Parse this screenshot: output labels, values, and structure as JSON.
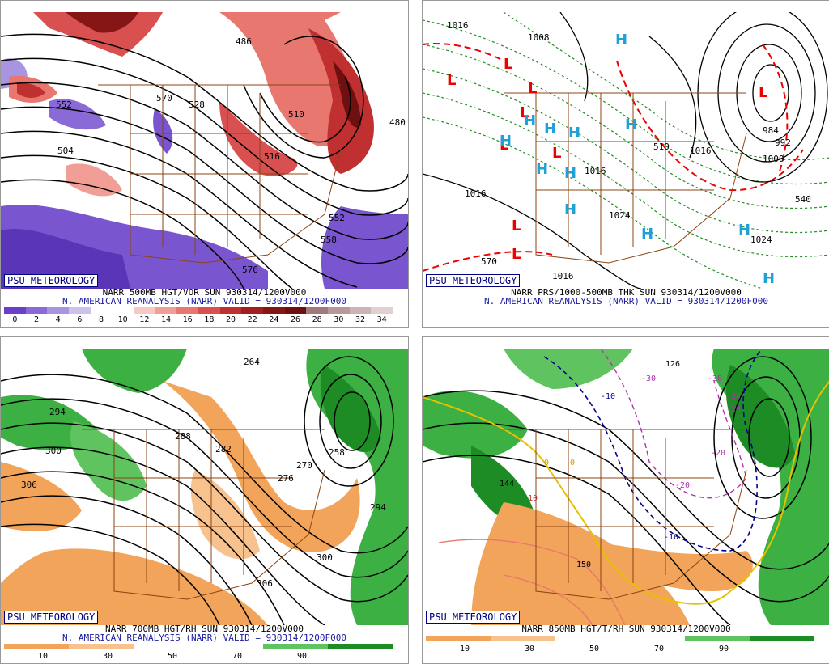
{
  "panels": [
    {
      "label": "PSU METEOROLOGY",
      "title_line1": "NARR 500MB HGT/VOR SUN 930314/1200V000",
      "title_line2": "N. AMERICAN REANALYSIS (NARR) VALID = 930314/1200F000",
      "colorbar_labels": [
        "0",
        "2",
        "4",
        "6",
        "8",
        "10",
        "12",
        "14",
        "16",
        "18",
        "20",
        "22",
        "24",
        "26",
        "28",
        "30",
        "32",
        "34"
      ],
      "colorbar_colors": [
        "#6a3fc9",
        "#8a6ad6",
        "#a994e0",
        "#ccc2ea",
        "#ffffff",
        "#ffffff",
        "#f6c9c2",
        "#f09e96",
        "#e87770",
        "#d85050",
        "#c03030",
        "#a31f1f",
        "#861616",
        "#6e1010",
        "#a07a7a",
        "#b89999",
        "#cdb3b3",
        "#e2cfcf"
      ],
      "map_labels": [
        "552",
        "504",
        "570",
        "528",
        "516",
        "552",
        "576",
        "486",
        "510",
        "558",
        "480"
      ]
    },
    {
      "label": "PSU METEOROLOGY",
      "title_line1": "NARR PRS/1000-500MB THK SUN 930314/1200V000",
      "title_line2": "N. AMERICAN REANALYSIS (NARR) VALID = 930314/1200F000",
      "map_labels": [
        "1016",
        "1008",
        "1016",
        "1016",
        "1024",
        "1016",
        "570",
        "510",
        "1016",
        "1024",
        "1000",
        "984",
        "992",
        "540"
      ]
    },
    {
      "label": "PSU METEOROLOGY",
      "title_line1": "NARR 700MB HGT/RH SUN 930314/1200V000",
      "title_line2": "N. AMERICAN REANALYSIS (NARR) VALID = 930314/1200F000",
      "colorbar_labels": [
        "10",
        "30",
        "50",
        "70",
        "90"
      ],
      "map_labels": [
        "264",
        "294",
        "300",
        "306",
        "288",
        "282",
        "276",
        "270",
        "258",
        "300",
        "306",
        "294"
      ]
    },
    {
      "label": "PSU METEOROLOGY",
      "title_line1": "NARR 850MB HGT/T/RH SUN 930314/1200V000",
      "title_line2": "",
      "colorbar_labels": [
        "10",
        "30",
        "50",
        "70",
        "90"
      ],
      "map_labels": [
        "126",
        "-30",
        "-30",
        "-20",
        "-20",
        "-20",
        "-20",
        "-10",
        "0",
        "0",
        "10",
        "144",
        "150",
        "-10"
      ]
    }
  ]
}
